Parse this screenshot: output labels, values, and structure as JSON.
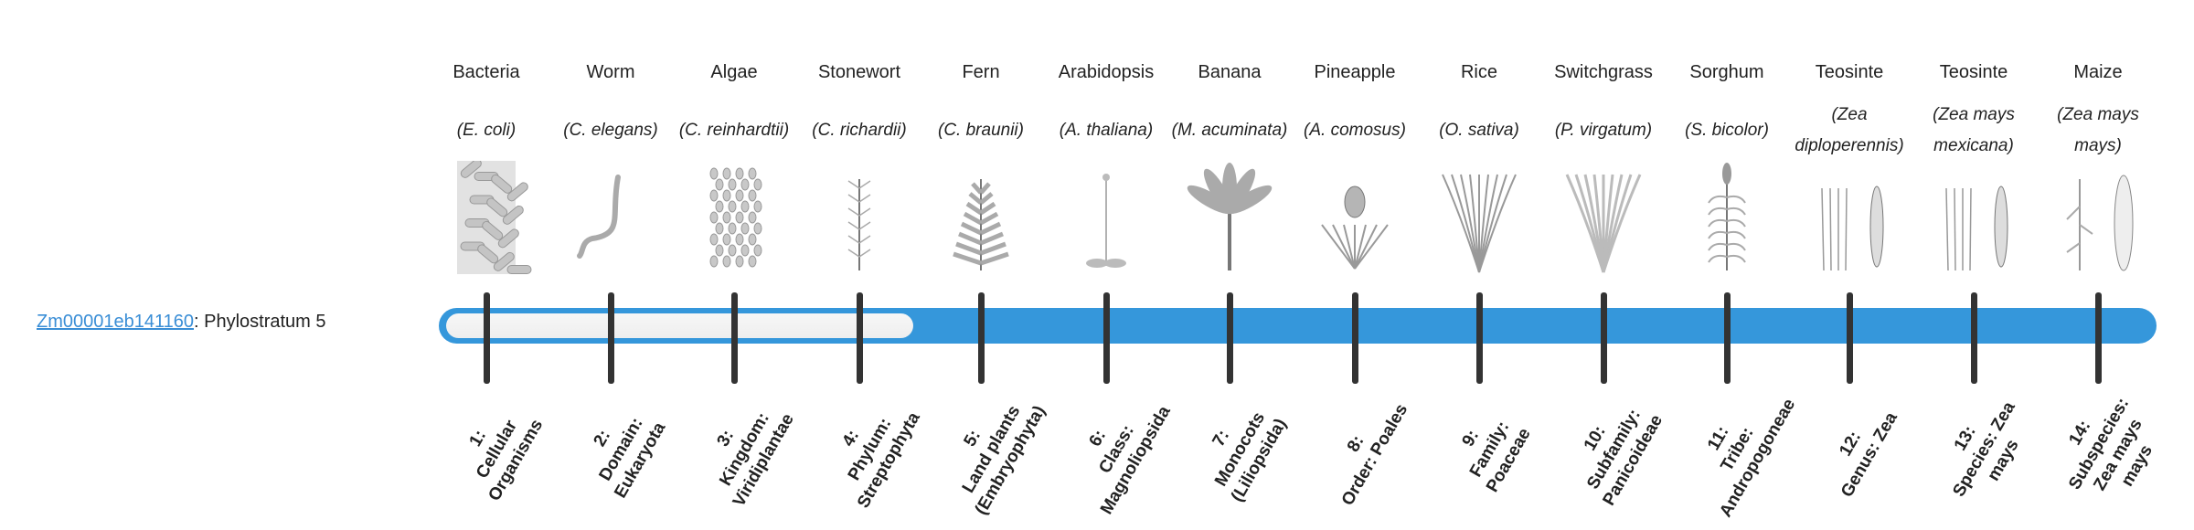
{
  "gene": {
    "id_link": "Zm00001eb141160",
    "suffix": ": Phylostratum 5"
  },
  "phylostratum": 5,
  "colors": {
    "accent": "#3597db",
    "track": "#f2f2f2",
    "tick": "#333333",
    "link": "#3a8ed6"
  },
  "organisms": [
    {
      "common": "Bacteria",
      "species": "(E. coli)",
      "icon": "bacteria-icon",
      "num": "1:",
      "rank": "Cellular Organisms"
    },
    {
      "common": "Worm",
      "species": "(C. elegans)",
      "icon": "worm-icon",
      "num": "2:",
      "rank": "Domain: Eukaryota"
    },
    {
      "common": "Algae",
      "species": "(C. reinhardtii)",
      "icon": "algae-icon",
      "num": "3:",
      "rank": "Kingdom: Viridiplantae"
    },
    {
      "common": "Stonewort",
      "species": "(C. richardii)",
      "icon": "stonewort-icon",
      "num": "4:",
      "rank": "Phylum: Streptophyta"
    },
    {
      "common": "Fern",
      "species": "(C. braunii)",
      "icon": "fern-icon",
      "num": "5:",
      "rank": "Land plants (Embryophyta)"
    },
    {
      "common": "Arabidopsis",
      "species": "(A. thaliana)",
      "icon": "arabidopsis-icon",
      "num": "6:",
      "rank": "Class: Magnoliopsida"
    },
    {
      "common": "Banana",
      "species": "(M. acuminata)",
      "icon": "banana-icon",
      "num": "7:",
      "rank": "Monocots (Liliopsida)"
    },
    {
      "common": "Pineapple",
      "species": "(A. comosus)",
      "icon": "pineapple-icon",
      "num": "8:",
      "rank": "Order: Poales"
    },
    {
      "common": "Rice",
      "species": "(O. sativa)",
      "icon": "rice-icon",
      "num": "9:",
      "rank": "Family: Poaceae"
    },
    {
      "common": "Switchgrass",
      "species": "(P. virgatum)",
      "icon": "switchgrass-icon",
      "num": "10:",
      "rank": "Subfamily: Panicoideae"
    },
    {
      "common": "Sorghum",
      "species": "(S. bicolor)",
      "icon": "sorghum-icon",
      "num": "11:",
      "rank": "Tribe: Andropogoneae"
    },
    {
      "common": "Teosinte",
      "species": "(Zea diploperennis)",
      "icon": "teosinte-icon",
      "num": "12:",
      "rank": "Genus: Zea"
    },
    {
      "common": "Teosinte",
      "species": "(Zea mays mexicana)",
      "icon": "teosinte-icon",
      "num": "13:",
      "rank": "Species: Zea mays"
    },
    {
      "common": "Maize",
      "species": "(Zea mays mays)",
      "icon": "maize-icon",
      "num": "14:",
      "rank": "Subspecies: Zea mays mays"
    }
  ]
}
